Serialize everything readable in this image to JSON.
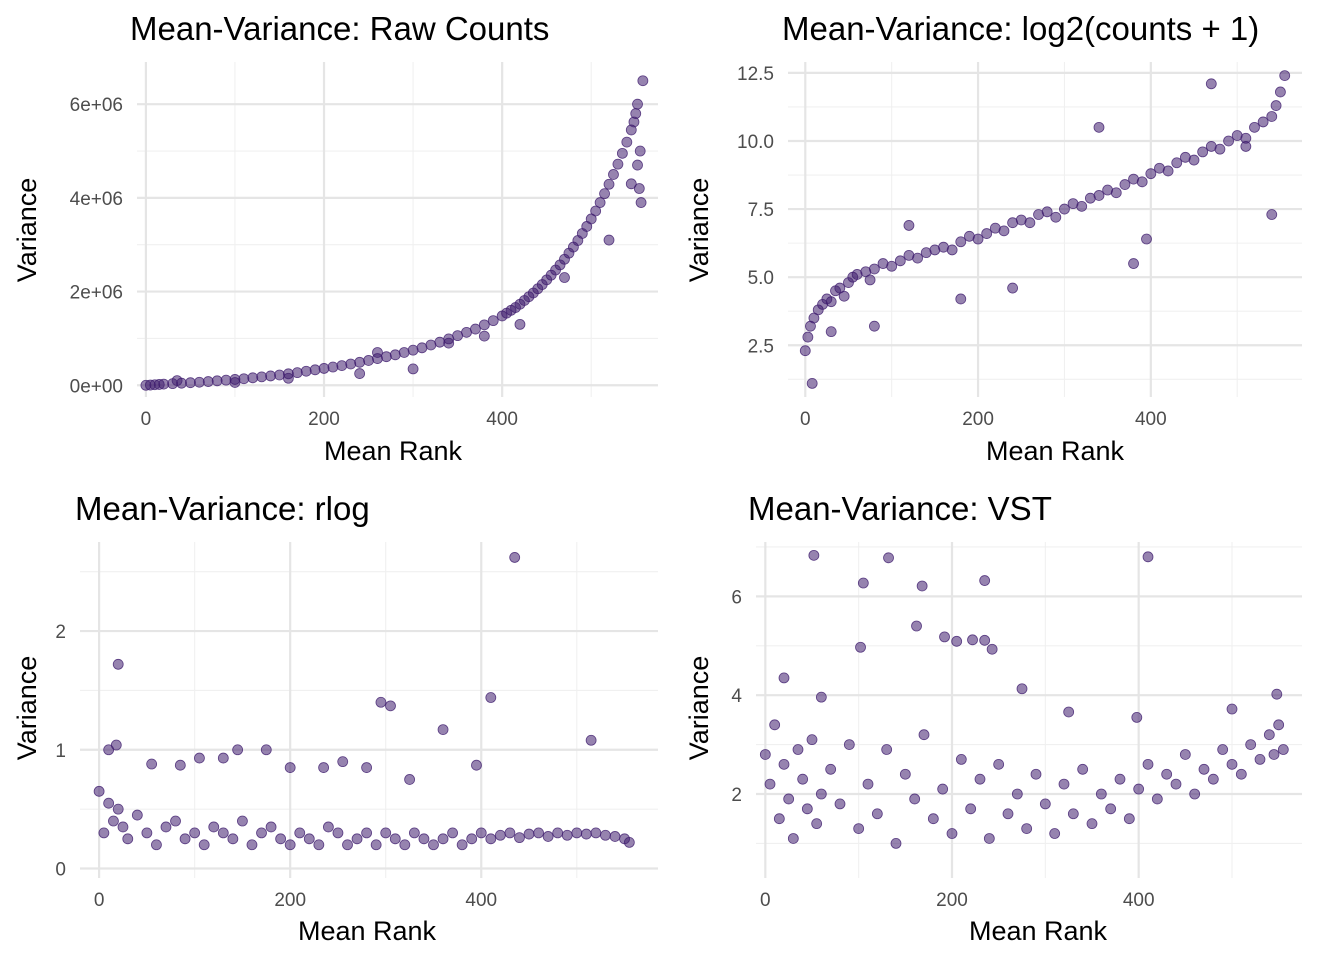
{
  "chart_data": [
    {
      "type": "scatter",
      "title": "Mean-Variance: Raw Counts",
      "xlabel": "Mean Rank",
      "ylabel": "Variance",
      "xlim": [
        -10,
        575
      ],
      "ylim": [
        -250000,
        6900000
      ],
      "x_ticks": [
        0,
        200,
        400
      ],
      "x_tick_labels": [
        "0",
        "200",
        "400"
      ],
      "y_ticks": [
        0,
        2000000,
        4000000,
        6000000
      ],
      "y_tick_labels": [
        "0e+00",
        "2e+06",
        "4e+06",
        "6e+06"
      ],
      "grid": true,
      "color": "#3f1d6e",
      "x": [
        0,
        5,
        10,
        15,
        20,
        30,
        40,
        50,
        60,
        70,
        80,
        90,
        100,
        110,
        120,
        130,
        140,
        150,
        160,
        170,
        180,
        190,
        200,
        210,
        220,
        230,
        240,
        250,
        260,
        270,
        280,
        290,
        300,
        310,
        320,
        330,
        340,
        350,
        360,
        370,
        380,
        390,
        400,
        405,
        410,
        415,
        420,
        425,
        430,
        435,
        440,
        445,
        450,
        455,
        460,
        465,
        470,
        475,
        480,
        485,
        490,
        495,
        500,
        505,
        510,
        515,
        520,
        525,
        530,
        535,
        540,
        545,
        548,
        550,
        552,
        554,
        556,
        558,
        35,
        100,
        160,
        240,
        260,
        300,
        340,
        380,
        420,
        470,
        520,
        545,
        552,
        555
      ],
      "y": [
        0,
        5000,
        12000,
        18000,
        25000,
        35000,
        45000,
        55000,
        65000,
        80000,
        95000,
        110000,
        125000,
        140000,
        160000,
        180000,
        200000,
        220000,
        245000,
        270000,
        300000,
        330000,
        360000,
        390000,
        420000,
        455000,
        490000,
        530000,
        570000,
        610000,
        650000,
        700000,
        750000,
        800000,
        860000,
        920000,
        990000,
        1060000,
        1130000,
        1200000,
        1290000,
        1380000,
        1480000,
        1540000,
        1600000,
        1660000,
        1730000,
        1810000,
        1890000,
        1970000,
        2060000,
        2150000,
        2250000,
        2350000,
        2460000,
        2570000,
        2690000,
        2820000,
        2950000,
        3090000,
        3240000,
        3390000,
        3550000,
        3720000,
        3900000,
        4090000,
        4290000,
        4500000,
        4720000,
        4950000,
        5190000,
        5450000,
        5620000,
        5800000,
        6000000,
        4200000,
        3900000,
        6500000,
        100000,
        60000,
        150000,
        250000,
        700000,
        350000,
        900000,
        1050000,
        1300000,
        2300000,
        3100000,
        4300000,
        4700000,
        5000000
      ]
    },
    {
      "type": "scatter",
      "title": "Mean-Variance: log2(counts + 1)",
      "xlabel": "Mean Rank",
      "ylabel": "Variance",
      "xlim": [
        -20,
        575
      ],
      "ylim": [
        0.6,
        12.9
      ],
      "x_ticks": [
        0,
        200,
        400
      ],
      "x_tick_labels": [
        "0",
        "200",
        "400"
      ],
      "y_ticks": [
        2.5,
        5.0,
        7.5,
        10.0,
        12.5
      ],
      "y_tick_labels": [
        "2.5",
        "5.0",
        "7.5",
        "10.0",
        "12.5"
      ],
      "grid": true,
      "color": "#3f1d6e",
      "x": [
        0,
        3,
        6,
        10,
        15,
        20,
        25,
        30,
        35,
        40,
        45,
        50,
        55,
        60,
        70,
        75,
        80,
        90,
        100,
        110,
        120,
        130,
        140,
        150,
        160,
        170,
        180,
        190,
        200,
        210,
        220,
        230,
        240,
        250,
        260,
        270,
        280,
        290,
        300,
        310,
        320,
        330,
        340,
        350,
        360,
        370,
        380,
        390,
        400,
        410,
        420,
        430,
        440,
        450,
        460,
        470,
        480,
        490,
        500,
        510,
        520,
        530,
        540,
        545,
        550,
        555,
        8,
        30,
        80,
        120,
        180,
        240,
        340,
        380,
        395,
        470,
        510,
        540
      ],
      "y": [
        2.3,
        2.8,
        3.2,
        3.5,
        3.8,
        4.0,
        4.2,
        4.1,
        4.5,
        4.6,
        4.3,
        4.8,
        5.0,
        5.1,
        5.2,
        4.9,
        5.3,
        5.5,
        5.4,
        5.6,
        5.8,
        5.7,
        5.9,
        6.0,
        6.1,
        6.0,
        6.3,
        6.5,
        6.4,
        6.6,
        6.8,
        6.7,
        7.0,
        7.1,
        7.0,
        7.3,
        7.4,
        7.2,
        7.5,
        7.7,
        7.6,
        7.9,
        8.0,
        8.2,
        8.1,
        8.4,
        8.6,
        8.5,
        8.8,
        9.0,
        8.9,
        9.2,
        9.4,
        9.3,
        9.6,
        9.8,
        9.7,
        10.0,
        10.2,
        10.1,
        10.5,
        10.7,
        10.9,
        11.3,
        11.8,
        12.4,
        1.1,
        3.0,
        3.2,
        6.9,
        4.2,
        4.6,
        10.5,
        5.5,
        6.4,
        12.1,
        9.8,
        7.3
      ]
    },
    {
      "type": "scatter",
      "title": "Mean-Variance: rlog",
      "xlabel": "Mean Rank",
      "ylabel": "Variance",
      "xlim": [
        -20,
        585
      ],
      "ylim": [
        -0.08,
        2.75
      ],
      "x_ticks": [
        0,
        200,
        400
      ],
      "x_tick_labels": [
        "0",
        "200",
        "400"
      ],
      "y_ticks": [
        0,
        1,
        2
      ],
      "y_tick_labels": [
        "0",
        "1",
        "2"
      ],
      "grid": true,
      "color": "#3f1d6e",
      "x": [
        0,
        5,
        10,
        15,
        20,
        25,
        30,
        40,
        50,
        60,
        70,
        80,
        90,
        100,
        110,
        120,
        130,
        140,
        150,
        160,
        170,
        180,
        190,
        200,
        210,
        220,
        230,
        240,
        250,
        260,
        270,
        280,
        290,
        300,
        310,
        320,
        330,
        340,
        350,
        360,
        370,
        380,
        390,
        400,
        410,
        420,
        430,
        440,
        450,
        460,
        470,
        480,
        490,
        500,
        510,
        520,
        530,
        540,
        550,
        555,
        20,
        10,
        18,
        55,
        85,
        105,
        130,
        145,
        175,
        200,
        235,
        255,
        280,
        295,
        305,
        325,
        360,
        395,
        410,
        435,
        515
      ],
      "y": [
        0.65,
        0.3,
        0.55,
        0.4,
        0.5,
        0.35,
        0.25,
        0.45,
        0.3,
        0.2,
        0.35,
        0.4,
        0.25,
        0.3,
        0.2,
        0.35,
        0.3,
        0.25,
        0.4,
        0.2,
        0.3,
        0.35,
        0.25,
        0.2,
        0.3,
        0.25,
        0.2,
        0.35,
        0.3,
        0.2,
        0.25,
        0.3,
        0.2,
        0.3,
        0.25,
        0.2,
        0.3,
        0.25,
        0.2,
        0.25,
        0.3,
        0.2,
        0.25,
        0.3,
        0.25,
        0.28,
        0.3,
        0.26,
        0.29,
        0.3,
        0.27,
        0.3,
        0.28,
        0.3,
        0.29,
        0.3,
        0.28,
        0.27,
        0.25,
        0.22,
        1.72,
        1.0,
        1.04,
        0.88,
        0.87,
        0.93,
        0.93,
        1.0,
        1.0,
        0.85,
        0.85,
        0.9,
        0.85,
        1.4,
        1.37,
        0.75,
        1.17,
        0.87,
        1.44,
        2.62,
        1.08
      ]
    },
    {
      "type": "scatter",
      "title": "Mean-Variance: VST",
      "xlabel": "Mean Rank",
      "ylabel": "Variance",
      "xlim": [
        -10,
        575
      ],
      "ylim": [
        0.3,
        7.1
      ],
      "x_ticks": [
        0,
        200,
        400
      ],
      "x_tick_labels": [
        "0",
        "200",
        "400"
      ],
      "y_ticks": [
        2,
        4,
        6
      ],
      "y_tick_labels": [
        "2",
        "4",
        "6"
      ],
      "grid": true,
      "color": "#3f1d6e",
      "x": [
        0,
        5,
        10,
        15,
        20,
        25,
        30,
        35,
        40,
        45,
        50,
        55,
        60,
        70,
        80,
        90,
        100,
        110,
        120,
        130,
        140,
        150,
        160,
        170,
        180,
        190,
        200,
        210,
        220,
        230,
        240,
        250,
        260,
        270,
        280,
        290,
        300,
        310,
        320,
        330,
        340,
        350,
        360,
        370,
        380,
        390,
        400,
        410,
        420,
        430,
        440,
        450,
        460,
        470,
        480,
        490,
        500,
        510,
        520,
        530,
        540,
        545,
        550,
        555,
        52,
        105,
        132,
        168,
        235,
        410,
        102,
        162,
        192,
        205,
        222,
        235,
        243,
        275,
        325,
        398,
        500,
        548,
        20,
        60
      ],
      "y": [
        2.8,
        2.2,
        3.4,
        1.5,
        2.6,
        1.9,
        1.1,
        2.9,
        2.3,
        1.7,
        3.1,
        1.4,
        2.0,
        2.5,
        1.8,
        3.0,
        1.3,
        2.2,
        1.6,
        2.9,
        1.0,
        2.4,
        1.9,
        3.2,
        1.5,
        2.1,
        1.2,
        2.7,
        1.7,
        2.3,
        1.1,
        2.6,
        1.6,
        2.0,
        1.3,
        2.4,
        1.8,
        1.2,
        2.2,
        1.6,
        2.5,
        1.4,
        2.0,
        1.7,
        2.3,
        1.5,
        2.1,
        2.6,
        1.9,
        2.4,
        2.2,
        2.8,
        2.0,
        2.5,
        2.3,
        2.9,
        2.6,
        2.4,
        3.0,
        2.7,
        3.2,
        2.8,
        3.4,
        2.9,
        6.83,
        6.27,
        6.78,
        6.21,
        6.32,
        6.8,
        4.97,
        5.4,
        5.18,
        5.09,
        5.12,
        5.11,
        4.93,
        4.13,
        3.66,
        3.55,
        3.72,
        4.02,
        4.35,
        3.96
      ]
    }
  ]
}
